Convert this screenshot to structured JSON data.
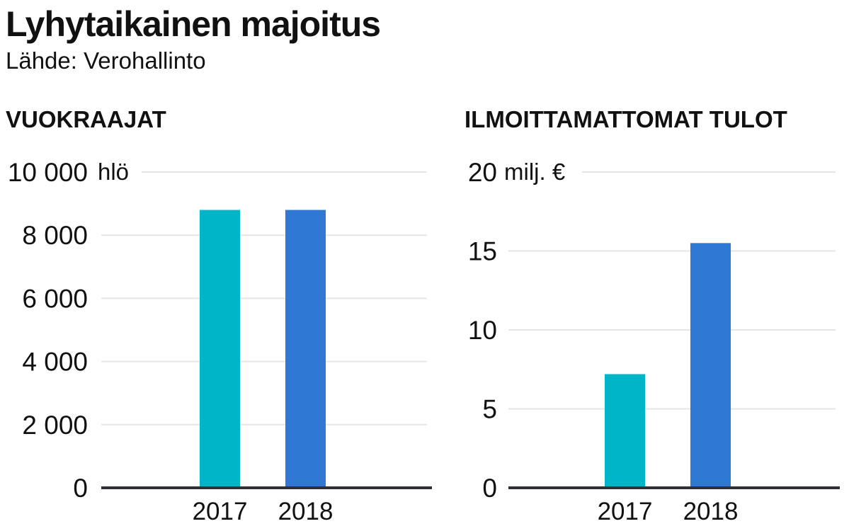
{
  "title": "Lyhytaikainen majoitus",
  "source": "Lähde: Verohallinto",
  "colors": {
    "2017": "#00b5c8",
    "2018": "#2f78d4"
  },
  "chart_data": [
    {
      "type": "bar",
      "title": "VUOKRAAJAT",
      "unit": "hlö",
      "categories": [
        "2017",
        "2018"
      ],
      "values": [
        8800,
        8800
      ],
      "ylim": [
        0,
        10000
      ],
      "yticks": [
        0,
        2000,
        4000,
        6000,
        8000,
        10000
      ],
      "ytick_labels": [
        "0",
        "2 000",
        "4 000",
        "6 000",
        "8 000",
        "10 000"
      ],
      "grid": true
    },
    {
      "type": "bar",
      "title": "ILMOITTAMATTOMAT TULOT",
      "unit": "milj. €",
      "categories": [
        "2017",
        "2018"
      ],
      "values": [
        7.2,
        15.5
      ],
      "ylim": [
        0,
        20
      ],
      "yticks": [
        0,
        5,
        10,
        15,
        20
      ],
      "ytick_labels": [
        "0",
        "5",
        "10",
        "15",
        "20"
      ],
      "grid": true
    }
  ]
}
